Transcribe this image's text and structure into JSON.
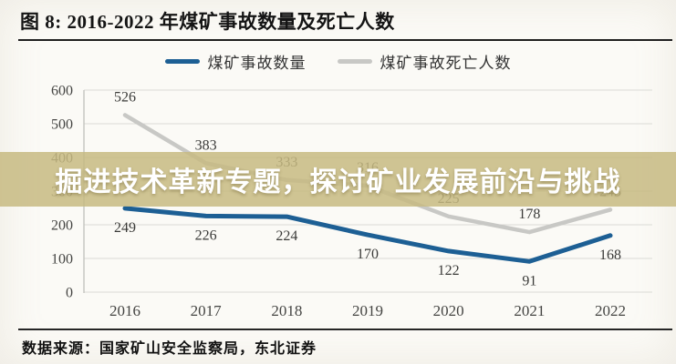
{
  "figure": {
    "title": "图 8: 2016-2022 年煤矿事故数量及死亡人数",
    "source": "数据来源：国家矿山安全监察局，东北证券"
  },
  "overlay": {
    "banner_text": "掘进技术革新专题，探讨矿业发展前沿与挑战",
    "background_hex": "#c7ba81",
    "background_opacity": 0.85,
    "text_color": "#ffffff"
  },
  "chart_data": {
    "type": "line",
    "title": "2016-2022 年煤矿事故数量及死亡人数",
    "categories": [
      "2016",
      "2017",
      "2018",
      "2019",
      "2020",
      "2021",
      "2022"
    ],
    "series": [
      {
        "name": "煤矿事故数量",
        "color": "#1d5f94",
        "values": [
          249,
          226,
          224,
          170,
          122,
          91,
          168
        ],
        "data_label_position": "below"
      },
      {
        "name": "煤矿事故死亡人数",
        "color": "#c8c8c5",
        "values": [
          526,
          383,
          333,
          316,
          225,
          178,
          245
        ],
        "data_label_position": "above"
      }
    ],
    "xlabel": "",
    "ylabel": "",
    "ylim": [
      0,
      600
    ],
    "ytick_interval": 100,
    "grid": true,
    "legend_position": "top-center",
    "axis_text_color": "#454543",
    "grid_color": "#dbdbd6"
  }
}
